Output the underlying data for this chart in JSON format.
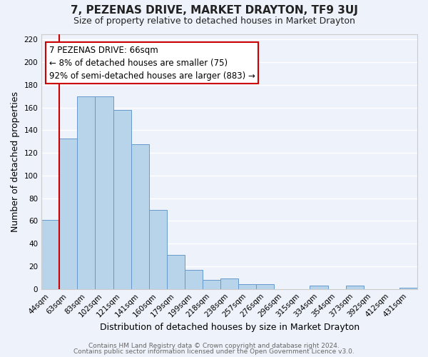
{
  "title": "7, PEZENAS DRIVE, MARKET DRAYTON, TF9 3UJ",
  "subtitle": "Size of property relative to detached houses in Market Drayton",
  "xlabel": "Distribution of detached houses by size in Market Drayton",
  "ylabel": "Number of detached properties",
  "bar_color": "#b8d4ea",
  "bar_edge_color": "#6699cc",
  "background_color": "#eef2fa",
  "grid_color": "#ffffff",
  "categories": [
    "44sqm",
    "63sqm",
    "83sqm",
    "102sqm",
    "121sqm",
    "141sqm",
    "160sqm",
    "179sqm",
    "199sqm",
    "218sqm",
    "238sqm",
    "257sqm",
    "276sqm",
    "296sqm",
    "315sqm",
    "334sqm",
    "354sqm",
    "373sqm",
    "392sqm",
    "412sqm",
    "431sqm"
  ],
  "values": [
    61,
    133,
    170,
    170,
    158,
    128,
    70,
    30,
    17,
    8,
    9,
    4,
    4,
    0,
    0,
    3,
    0,
    3,
    0,
    0,
    1
  ],
  "ylim": [
    0,
    225
  ],
  "yticks": [
    0,
    20,
    40,
    60,
    80,
    100,
    120,
    140,
    160,
    180,
    200,
    220
  ],
  "property_line_color": "#cc0000",
  "annotation_line1": "7 PEZENAS DRIVE: 66sqm",
  "annotation_line2": "← 8% of detached houses are smaller (75)",
  "annotation_line3": "92% of semi-detached houses are larger (883) →",
  "footer_line1": "Contains HM Land Registry data © Crown copyright and database right 2024.",
  "footer_line2": "Contains public sector information licensed under the Open Government Licence v3.0.",
  "title_fontsize": 11,
  "subtitle_fontsize": 9,
  "axis_label_fontsize": 9,
  "tick_fontsize": 7.5,
  "annotation_fontsize": 8.5,
  "footer_fontsize": 6.5
}
